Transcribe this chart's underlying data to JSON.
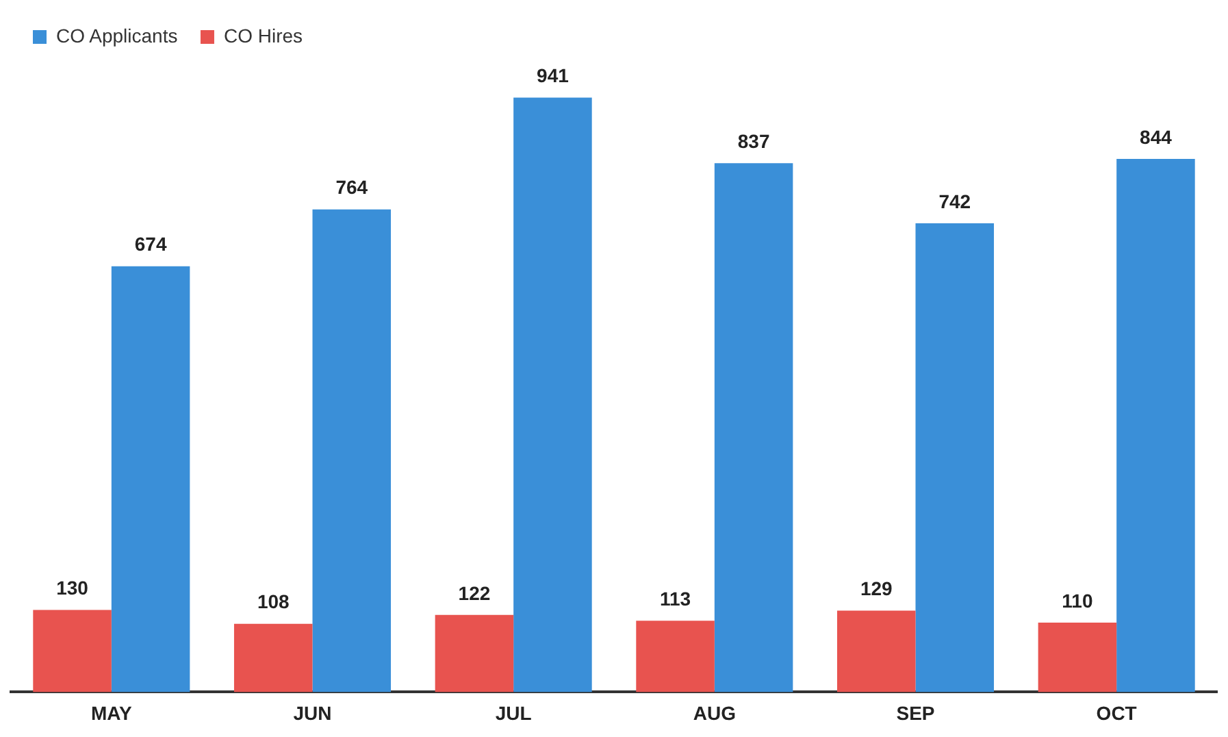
{
  "chart_data": {
    "type": "bar",
    "categories": [
      "MAY",
      "JUN",
      "JUL",
      "AUG",
      "SEP",
      "OCT"
    ],
    "series": [
      {
        "name": "CO Hires",
        "color": "#e8534f",
        "values": [
          130,
          108,
          122,
          113,
          129,
          110
        ]
      },
      {
        "name": "CO Applicants",
        "color": "#3a8fd8",
        "values": [
          674,
          764,
          941,
          837,
          742,
          844
        ]
      }
    ],
    "tick_labels": "x",
    "data_labels": true,
    "grid": false,
    "legend": "top left"
  }
}
